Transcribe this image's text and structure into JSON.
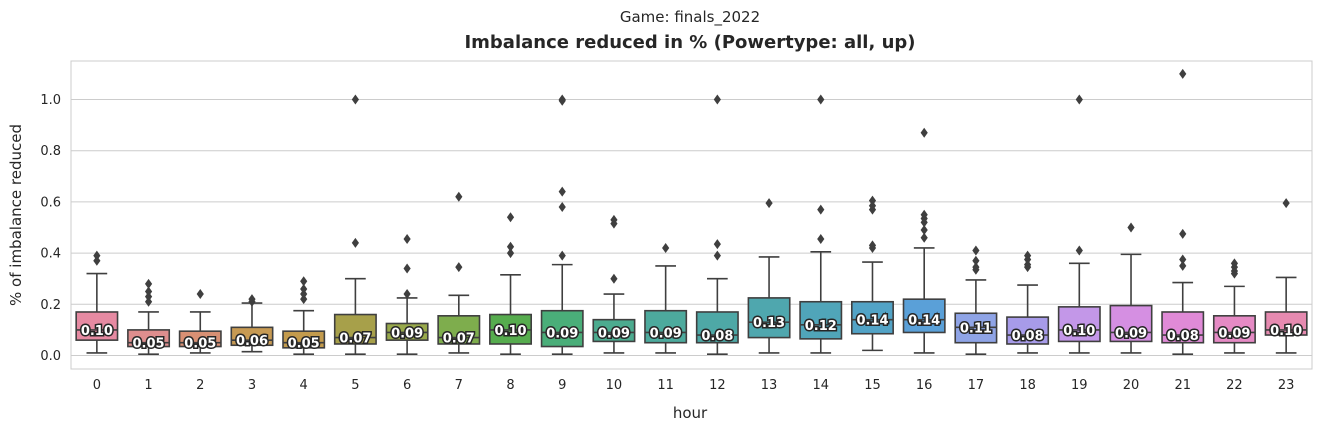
{
  "suptitle": "Game: finals_2022",
  "chart_data": {
    "type": "box",
    "title": "Imbalance reduced in % (Powertype: all, up)",
    "xlabel": "hour",
    "ylabel": "% of imbalance reduced",
    "ylim": [
      -0.05,
      1.15
    ],
    "yticks": [
      "0.0",
      "0.2",
      "0.4",
      "0.6",
      "0.8",
      "1.0"
    ],
    "grid": true,
    "categories": [
      "0",
      "1",
      "2",
      "3",
      "4",
      "5",
      "6",
      "7",
      "8",
      "9",
      "10",
      "11",
      "12",
      "13",
      "14",
      "15",
      "16",
      "17",
      "18",
      "19",
      "20",
      "21",
      "22",
      "23"
    ],
    "boxes": [
      {
        "hour": "0",
        "color": "#e68aa2",
        "whisker_low": 0.01,
        "q1": 0.06,
        "median": 0.1,
        "q3": 0.17,
        "whisker_high": 0.32,
        "median_label": "0.10",
        "outliers": [
          0.37,
          0.39
        ]
      },
      {
        "hour": "1",
        "color": "#de8e8e",
        "whisker_low": 0.005,
        "q1": 0.035,
        "median": 0.05,
        "q3": 0.1,
        "whisker_high": 0.17,
        "median_label": "0.05",
        "outliers": [
          0.21,
          0.23,
          0.25,
          0.28
        ]
      },
      {
        "hour": "2",
        "color": "#d89074",
        "whisker_low": 0.01,
        "q1": 0.035,
        "median": 0.05,
        "q3": 0.095,
        "whisker_high": 0.17,
        "median_label": "0.05",
        "outliers": [
          0.24
        ]
      },
      {
        "hour": "3",
        "color": "#c79a53",
        "whisker_low": 0.015,
        "q1": 0.04,
        "median": 0.06,
        "q3": 0.11,
        "whisker_high": 0.205,
        "median_label": "0.06",
        "outliers": [
          0.21,
          0.22
        ]
      },
      {
        "hour": "4",
        "color": "#c39b4d",
        "whisker_low": 0.005,
        "q1": 0.03,
        "median": 0.05,
        "q3": 0.095,
        "whisker_high": 0.175,
        "median_label": "0.05",
        "outliers": [
          0.22,
          0.24,
          0.26,
          0.29
        ]
      },
      {
        "hour": "5",
        "color": "#a7a04a",
        "whisker_low": 0.005,
        "q1": 0.045,
        "median": 0.07,
        "q3": 0.16,
        "whisker_high": 0.3,
        "median_label": "0.07",
        "outliers": [
          0.44,
          1.0
        ]
      },
      {
        "hour": "6",
        "color": "#98a94b",
        "whisker_low": 0.005,
        "q1": 0.06,
        "median": 0.09,
        "q3": 0.125,
        "whisker_high": 0.225,
        "median_label": "0.09",
        "outliers": [
          0.24,
          0.34,
          0.455
        ]
      },
      {
        "hour": "7",
        "color": "#7ead4d",
        "whisker_low": 0.01,
        "q1": 0.045,
        "median": 0.07,
        "q3": 0.155,
        "whisker_high": 0.235,
        "median_label": "0.07",
        "outliers": [
          0.345,
          0.62
        ]
      },
      {
        "hour": "8",
        "color": "#56ac4e",
        "whisker_low": 0.005,
        "q1": 0.045,
        "median": 0.1,
        "q3": 0.16,
        "whisker_high": 0.315,
        "median_label": "0.10",
        "outliers": [
          0.4,
          0.425,
          0.54
        ]
      },
      {
        "hour": "9",
        "color": "#4aae79",
        "whisker_low": 0.005,
        "q1": 0.035,
        "median": 0.09,
        "q3": 0.175,
        "whisker_high": 0.355,
        "median_label": "0.09",
        "outliers": [
          0.39,
          0.58,
          0.64,
          0.995,
          1.0
        ]
      },
      {
        "hour": "10",
        "color": "#4cab8f",
        "whisker_low": 0.01,
        "q1": 0.055,
        "median": 0.09,
        "q3": 0.14,
        "whisker_high": 0.24,
        "median_label": "0.09",
        "outliers": [
          0.3,
          0.515,
          0.53
        ]
      },
      {
        "hour": "11",
        "color": "#4daa9d",
        "whisker_low": 0.01,
        "q1": 0.05,
        "median": 0.09,
        "q3": 0.175,
        "whisker_high": 0.35,
        "median_label": "0.09",
        "outliers": [
          0.42
        ]
      },
      {
        "hour": "12",
        "color": "#4ea8a6",
        "whisker_low": 0.005,
        "q1": 0.05,
        "median": 0.08,
        "q3": 0.17,
        "whisker_high": 0.3,
        "median_label": "0.08",
        "outliers": [
          0.39,
          0.435,
          1.0
        ]
      },
      {
        "hour": "13",
        "color": "#4fa7ae",
        "whisker_low": 0.01,
        "q1": 0.07,
        "median": 0.13,
        "q3": 0.225,
        "whisker_high": 0.385,
        "median_label": "0.13",
        "outliers": [
          0.595
        ]
      },
      {
        "hour": "14",
        "color": "#50a5b9",
        "whisker_low": 0.01,
        "q1": 0.065,
        "median": 0.12,
        "q3": 0.21,
        "whisker_high": 0.405,
        "median_label": "0.12",
        "outliers": [
          0.455,
          0.57,
          1.0
        ]
      },
      {
        "hour": "15",
        "color": "#52a3c6",
        "whisker_low": 0.02,
        "q1": 0.085,
        "median": 0.14,
        "q3": 0.21,
        "whisker_high": 0.365,
        "median_label": "0.14",
        "outliers": [
          0.42,
          0.43,
          0.57,
          0.585,
          0.605
        ]
      },
      {
        "hour": "16",
        "color": "#5aa0d8",
        "whisker_low": 0.01,
        "q1": 0.09,
        "median": 0.14,
        "q3": 0.22,
        "whisker_high": 0.42,
        "median_label": "0.14",
        "outliers": [
          0.46,
          0.49,
          0.52,
          0.535,
          0.55,
          0.87
        ]
      },
      {
        "hour": "17",
        "color": "#8fa4e6",
        "whisker_low": 0.005,
        "q1": 0.05,
        "median": 0.11,
        "q3": 0.165,
        "whisker_high": 0.295,
        "median_label": "0.11",
        "outliers": [
          0.335,
          0.345,
          0.37,
          0.41
        ]
      },
      {
        "hour": "18",
        "color": "#a79be9",
        "whisker_low": 0.01,
        "q1": 0.045,
        "median": 0.08,
        "q3": 0.15,
        "whisker_high": 0.275,
        "median_label": "0.08",
        "outliers": [
          0.345,
          0.355,
          0.375,
          0.39
        ]
      },
      {
        "hour": "19",
        "color": "#c397e8",
        "whisker_low": 0.01,
        "q1": 0.055,
        "median": 0.1,
        "q3": 0.19,
        "whisker_high": 0.36,
        "median_label": "0.10",
        "outliers": [
          0.41,
          1.0
        ]
      },
      {
        "hour": "20",
        "color": "#d58fe2",
        "whisker_low": 0.01,
        "q1": 0.055,
        "median": 0.09,
        "q3": 0.195,
        "whisker_high": 0.395,
        "median_label": "0.09",
        "outliers": [
          0.5
        ]
      },
      {
        "hour": "21",
        "color": "#e08ad7",
        "whisker_low": 0.005,
        "q1": 0.05,
        "median": 0.08,
        "q3": 0.17,
        "whisker_high": 0.285,
        "median_label": "0.08",
        "outliers": [
          0.35,
          0.375,
          0.475,
          1.1
        ]
      },
      {
        "hour": "22",
        "color": "#e58ac4",
        "whisker_low": 0.01,
        "q1": 0.05,
        "median": 0.09,
        "q3": 0.155,
        "whisker_high": 0.27,
        "median_label": "0.09",
        "outliers": [
          0.32,
          0.33,
          0.345,
          0.36
        ]
      },
      {
        "hour": "23",
        "color": "#e68ab0",
        "whisker_low": 0.01,
        "q1": 0.08,
        "median": 0.1,
        "q3": 0.17,
        "whisker_high": 0.305,
        "median_label": "0.10",
        "outliers": [
          0.595
        ]
      }
    ]
  }
}
